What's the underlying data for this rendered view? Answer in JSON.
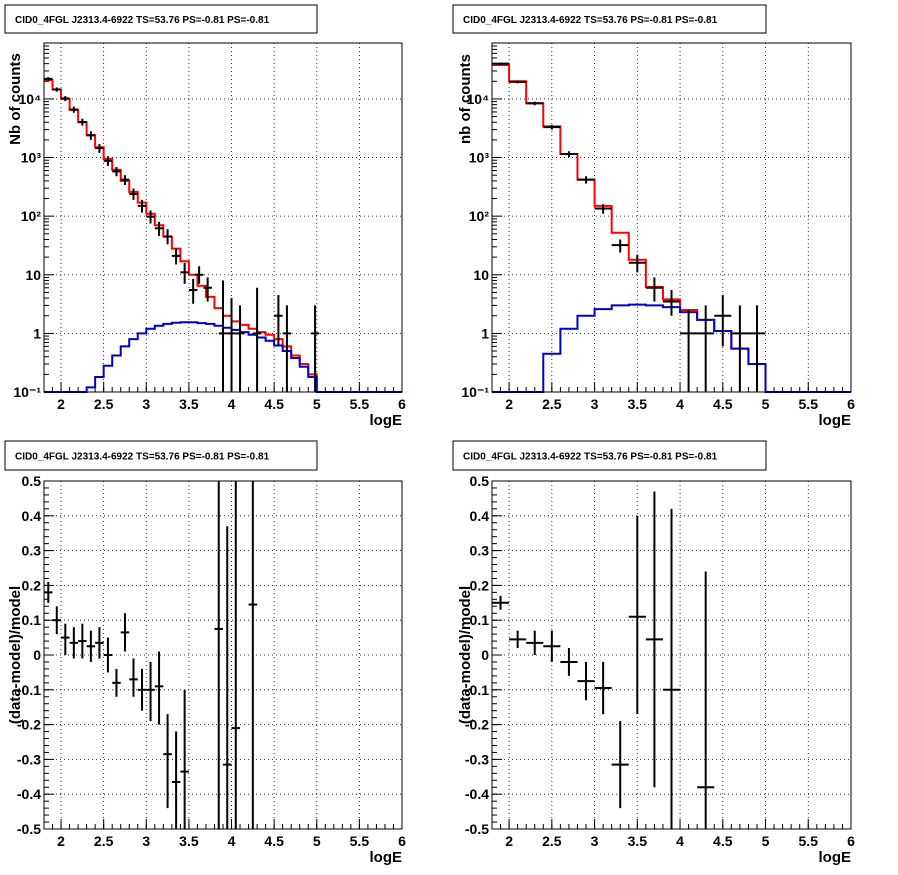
{
  "colors": {
    "data": "#000000",
    "total_model": "#ff0000",
    "source_model": "#0000cc",
    "grid": "#000000"
  },
  "chart_data": [
    {
      "id": "p1",
      "type": "step-histogram",
      "title": "CID0_4FGL J2313.4-6922 TS=53.76 PS=-0.81 PS=-0.81",
      "xlabel": "logE",
      "ylabel": "Nb of counts",
      "xlim": [
        1.8,
        6.0
      ],
      "ylim": [
        0.1,
        90000
      ],
      "yscale": "log",
      "grid": true,
      "x_ticks": [
        "2",
        "2.5",
        "3",
        "3.5",
        "4",
        "4.5",
        "5",
        "5.5",
        "6"
      ],
      "y_ticks": [
        "10⁻¹",
        "1",
        "10",
        "10²",
        "10³",
        "10⁴"
      ],
      "bin_edges": [
        1.8,
        1.9,
        2.0,
        2.1,
        2.2,
        2.3,
        2.4,
        2.5,
        2.6,
        2.7,
        2.8,
        2.9,
        3.0,
        3.1,
        3.2,
        3.3,
        3.4,
        3.5,
        3.6,
        3.7,
        3.8,
        3.9,
        4.0,
        4.1,
        4.2,
        4.3,
        4.4,
        4.5,
        4.6,
        4.7,
        4.8,
        4.9,
        5.0,
        5.1,
        5.2,
        5.3,
        5.4,
        5.5,
        5.6,
        5.7,
        5.8,
        5.9,
        6.0
      ],
      "series": [
        {
          "role": "total_model",
          "values": [
            21000,
            14500,
            10000,
            6500,
            4000,
            2400,
            1500,
            950,
            620,
            400,
            260,
            170,
            110,
            70,
            45,
            28,
            17,
            10,
            6.5,
            4.2,
            2.7,
            2.0,
            1.6,
            1.4,
            1.2,
            1.05,
            0.95,
            0.8,
            0.6,
            0.42,
            0.3,
            0.2,
            0.1,
            0.1,
            0.1,
            0.1,
            0.1,
            0.1,
            0.1,
            0.1,
            0.1,
            0.1
          ]
        },
        {
          "role": "source_model",
          "values": [
            0.1,
            0.1,
            0.1,
            0.1,
            0.1,
            0.12,
            0.18,
            0.28,
            0.42,
            0.6,
            0.8,
            1.0,
            1.2,
            1.35,
            1.45,
            1.52,
            1.55,
            1.55,
            1.5,
            1.45,
            1.35,
            1.25,
            1.15,
            1.05,
            0.95,
            0.85,
            0.75,
            0.62,
            0.5,
            0.38,
            0.27,
            0.18,
            0.1,
            0.1,
            0.1,
            0.1,
            0.1,
            0.1,
            0.1,
            0.1,
            0.1,
            0.1
          ]
        }
      ],
      "points": [
        {
          "x": 1.85,
          "y": 22000,
          "lo": 20500,
          "hi": 23500
        },
        {
          "x": 1.95,
          "y": 14500,
          "lo": 13300,
          "hi": 15700
        },
        {
          "x": 2.05,
          "y": 10200,
          "lo": 9200,
          "hi": 11200
        },
        {
          "x": 2.15,
          "y": 6600,
          "lo": 5800,
          "hi": 7400
        },
        {
          "x": 2.25,
          "y": 4050,
          "lo": 3500,
          "hi": 4600
        },
        {
          "x": 2.35,
          "y": 2400,
          "lo": 2000,
          "hi": 2800
        },
        {
          "x": 2.45,
          "y": 1450,
          "lo": 1200,
          "hi": 1700
        },
        {
          "x": 2.55,
          "y": 880,
          "lo": 720,
          "hi": 1050
        },
        {
          "x": 2.65,
          "y": 580,
          "lo": 480,
          "hi": 690
        },
        {
          "x": 2.75,
          "y": 420,
          "lo": 340,
          "hi": 500
        },
        {
          "x": 2.85,
          "y": 240,
          "lo": 190,
          "hi": 295
        },
        {
          "x": 2.95,
          "y": 150,
          "lo": 115,
          "hi": 190
        },
        {
          "x": 3.05,
          "y": 98,
          "lo": 75,
          "hi": 125
        },
        {
          "x": 3.15,
          "y": 62,
          "lo": 46,
          "hi": 80
        },
        {
          "x": 3.25,
          "y": 45,
          "lo": 33,
          "hi": 60
        },
        {
          "x": 3.35,
          "y": 21,
          "lo": 15,
          "hi": 28
        },
        {
          "x": 3.45,
          "y": 11,
          "lo": 7,
          "hi": 16
        },
        {
          "x": 3.55,
          "y": 5.5,
          "lo": 3.2,
          "hi": 8.5
        },
        {
          "x": 3.62,
          "y": 10,
          "lo": 7,
          "hi": 14
        },
        {
          "x": 3.72,
          "y": 6,
          "lo": 3.5,
          "hi": 9
        },
        {
          "x": 3.9,
          "y": 1.0,
          "lo": 0.1,
          "hi": 8
        },
        {
          "x": 4.0,
          "y": 1.0,
          "lo": 0.1,
          "hi": 4
        },
        {
          "x": 4.1,
          "y": 1.0,
          "lo": 0.1,
          "hi": 3
        },
        {
          "x": 4.3,
          "y": 1.0,
          "lo": 0.1,
          "hi": 6
        },
        {
          "x": 4.55,
          "y": 2.0,
          "lo": 0.6,
          "hi": 4.5
        },
        {
          "x": 4.65,
          "y": 1.0,
          "lo": 0.1,
          "hi": 3
        },
        {
          "x": 4.98,
          "y": 1.0,
          "lo": 0.1,
          "hi": 3
        }
      ]
    },
    {
      "id": "p2",
      "type": "step-histogram",
      "title": "CID0_4FGL J2313.4-6922 TS=53.76 PS=-0.81 PS=-0.81",
      "xlabel": "logE",
      "ylabel": "nb of counts",
      "xlim": [
        1.8,
        6.0
      ],
      "ylim": [
        0.1,
        90000
      ],
      "yscale": "log",
      "grid": true,
      "x_ticks": [
        "2",
        "2.5",
        "3",
        "3.5",
        "4",
        "4.5",
        "5",
        "5.5",
        "6"
      ],
      "y_ticks": [
        "10⁻¹",
        "1",
        "10",
        "10²",
        "10³",
        "10⁴"
      ],
      "bin_edges": [
        1.8,
        2.0,
        2.2,
        2.4,
        2.6,
        2.8,
        3.0,
        3.2,
        3.4,
        3.6,
        3.8,
        4.0,
        4.2,
        4.4,
        4.6,
        4.8,
        5.0,
        5.2,
        5.4,
        5.6,
        5.8,
        6.0
      ],
      "series": [
        {
          "role": "total_model",
          "values": [
            38000,
            20000,
            8500,
            3400,
            1150,
            420,
            150,
            52,
            18,
            6.2,
            3.8,
            2.5,
            1.7,
            1.1,
            0.55,
            0.3,
            0.1,
            0.1,
            0.1,
            0.1,
            0.1
          ]
        },
        {
          "role": "source_model",
          "values": [
            0.1,
            0.1,
            0.1,
            0.45,
            1.2,
            2.0,
            2.6,
            3.0,
            3.1,
            3.0,
            2.8,
            2.3,
            1.7,
            1.1,
            0.55,
            0.3,
            0.1,
            0.1,
            0.1,
            0.1,
            0.1
          ]
        }
      ],
      "points": [
        {
          "x": 1.9,
          "y": 40000,
          "lo": 38500,
          "hi": 41500
        },
        {
          "x": 2.1,
          "y": 19500,
          "lo": 18500,
          "hi": 20500
        },
        {
          "x": 2.3,
          "y": 8400,
          "lo": 7800,
          "hi": 9000
        },
        {
          "x": 2.5,
          "y": 3300,
          "lo": 3000,
          "hi": 3600
        },
        {
          "x": 2.7,
          "y": 1150,
          "lo": 1020,
          "hi": 1280
        },
        {
          "x": 2.9,
          "y": 420,
          "lo": 360,
          "hi": 480
        },
        {
          "x": 3.1,
          "y": 135,
          "lo": 110,
          "hi": 160
        },
        {
          "x": 3.3,
          "y": 32,
          "lo": 24,
          "hi": 40
        },
        {
          "x": 3.5,
          "y": 16,
          "lo": 11,
          "hi": 22
        },
        {
          "x": 3.7,
          "y": 6,
          "lo": 3.5,
          "hi": 9
        },
        {
          "x": 3.9,
          "y": 3.5,
          "lo": 2,
          "hi": 5.5
        },
        {
          "x": 4.1,
          "y": 1.0,
          "lo": 0.1,
          "hi": 2.5
        },
        {
          "x": 4.3,
          "y": 1.0,
          "lo": 0.1,
          "hi": 3
        },
        {
          "x": 4.5,
          "y": 2.0,
          "lo": 0.6,
          "hi": 4.5
        },
        {
          "x": 4.7,
          "y": 1.0,
          "lo": 0.1,
          "hi": 3
        },
        {
          "x": 4.9,
          "y": 1.0,
          "lo": 0.1,
          "hi": 3
        }
      ]
    },
    {
      "id": "p3",
      "type": "scatter-errorbar",
      "title": "CID0_4FGL J2313.4-6922 TS=53.76 PS=-0.81 PS=-0.81",
      "xlabel": "logE",
      "ylabel": "(data-model)/model",
      "xlim": [
        1.8,
        6.0
      ],
      "ylim": [
        -0.5,
        0.5
      ],
      "yscale": "linear",
      "grid": true,
      "x_ticks": [
        "2",
        "2.5",
        "3",
        "3.5",
        "4",
        "4.5",
        "5",
        "5.5",
        "6"
      ],
      "y_ticks": [
        "-0.5",
        "-0.4",
        "-0.3",
        "-0.2",
        "-0.1",
        "0",
        "0.1",
        "0.2",
        "0.3",
        "0.4",
        "0.5"
      ],
      "xerr": 0.05,
      "points": [
        {
          "x": 1.85,
          "y": 0.18,
          "lo": 0.15,
          "hi": 0.21
        },
        {
          "x": 1.95,
          "y": 0.1,
          "lo": 0.06,
          "hi": 0.14
        },
        {
          "x": 2.05,
          "y": 0.05,
          "lo": 0.0,
          "hi": 0.09
        },
        {
          "x": 2.15,
          "y": 0.035,
          "lo": -0.01,
          "hi": 0.08
        },
        {
          "x": 2.25,
          "y": 0.04,
          "lo": -0.01,
          "hi": 0.09
        },
        {
          "x": 2.35,
          "y": 0.025,
          "lo": -0.02,
          "hi": 0.07
        },
        {
          "x": 2.45,
          "y": 0.035,
          "lo": -0.01,
          "hi": 0.08
        },
        {
          "x": 2.55,
          "y": 0.0,
          "lo": -0.05,
          "hi": 0.05
        },
        {
          "x": 2.65,
          "y": -0.08,
          "lo": -0.12,
          "hi": -0.04
        },
        {
          "x": 2.75,
          "y": 0.065,
          "lo": 0.01,
          "hi": 0.12
        },
        {
          "x": 2.85,
          "y": -0.07,
          "lo": -0.12,
          "hi": -0.01
        },
        {
          "x": 2.95,
          "y": -0.1,
          "lo": -0.16,
          "hi": -0.04
        },
        {
          "x": 3.05,
          "y": -0.1,
          "lo": -0.19,
          "hi": -0.02
        },
        {
          "x": 3.15,
          "y": -0.09,
          "lo": -0.2,
          "hi": 0.01
        },
        {
          "x": 3.25,
          "y": -0.285,
          "lo": -0.44,
          "hi": -0.17
        },
        {
          "x": 3.35,
          "y": -0.365,
          "lo": -0.54,
          "hi": -0.22
        },
        {
          "x": 3.45,
          "y": -0.335,
          "lo": -0.55,
          "hi": -0.1
        },
        {
          "x": 3.85,
          "y": 0.075,
          "lo": -0.55,
          "hi": 0.55
        },
        {
          "x": 3.95,
          "y": -0.315,
          "lo": -0.55,
          "hi": 0.37
        },
        {
          "x": 4.05,
          "y": -0.21,
          "lo": -0.55,
          "hi": 0.55
        },
        {
          "x": 4.25,
          "y": 0.145,
          "lo": -0.55,
          "hi": 0.55
        }
      ]
    },
    {
      "id": "p4",
      "type": "scatter-errorbar",
      "title": "CID0_4FGL J2313.4-6922 TS=53.76 PS=-0.81 PS=-0.81",
      "xlabel": "logE",
      "ylabel": "(data-model)/model",
      "xlim": [
        1.8,
        6.0
      ],
      "ylim": [
        -0.5,
        0.5
      ],
      "yscale": "linear",
      "grid": true,
      "x_ticks": [
        "2",
        "2.5",
        "3",
        "3.5",
        "4",
        "4.5",
        "5",
        "5.5",
        "6"
      ],
      "y_ticks": [
        "-0.5",
        "-0.4",
        "-0.3",
        "-0.2",
        "-0.1",
        "0",
        "0.1",
        "0.2",
        "0.3",
        "0.4",
        "0.5"
      ],
      "xerr": 0.1,
      "points": [
        {
          "x": 1.9,
          "y": 0.15,
          "lo": 0.13,
          "hi": 0.17
        },
        {
          "x": 2.1,
          "y": 0.045,
          "lo": 0.02,
          "hi": 0.07
        },
        {
          "x": 2.3,
          "y": 0.035,
          "lo": 0.0,
          "hi": 0.07
        },
        {
          "x": 2.5,
          "y": 0.025,
          "lo": -0.02,
          "hi": 0.07
        },
        {
          "x": 2.7,
          "y": -0.02,
          "lo": -0.06,
          "hi": 0.02
        },
        {
          "x": 2.9,
          "y": -0.075,
          "lo": -0.13,
          "hi": -0.02
        },
        {
          "x": 3.1,
          "y": -0.095,
          "lo": -0.17,
          "hi": -0.02
        },
        {
          "x": 3.3,
          "y": -0.315,
          "lo": -0.44,
          "hi": -0.19
        },
        {
          "x": 3.5,
          "y": 0.11,
          "lo": -0.17,
          "hi": 0.4
        },
        {
          "x": 3.7,
          "y": 0.045,
          "lo": -0.38,
          "hi": 0.47
        },
        {
          "x": 3.9,
          "y": -0.1,
          "lo": -0.55,
          "hi": 0.42
        },
        {
          "x": 4.3,
          "y": -0.38,
          "lo": -0.55,
          "hi": 0.24
        }
      ]
    }
  ]
}
